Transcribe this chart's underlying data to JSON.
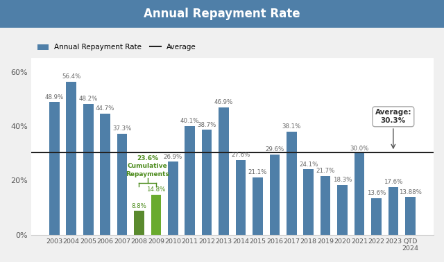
{
  "categories": [
    "2003",
    "2004",
    "2005",
    "2006",
    "2007",
    "2008",
    "2009",
    "2010",
    "2011",
    "2012",
    "2013",
    "2014",
    "2015",
    "2016",
    "2017",
    "2018",
    "2019",
    "2020",
    "2021",
    "2022",
    "2023",
    "QTD\n2024"
  ],
  "values": [
    48.9,
    56.4,
    48.2,
    44.7,
    37.3,
    8.8,
    14.8,
    26.9,
    40.1,
    38.7,
    46.9,
    27.6,
    21.1,
    29.6,
    38.1,
    24.1,
    21.7,
    18.3,
    30.0,
    13.6,
    17.6,
    13.88
  ],
  "bar_colors": [
    "#4f7fa8",
    "#4f7fa8",
    "#4f7fa8",
    "#4f7fa8",
    "#4f7fa8",
    "#5a8a2e",
    "#6aab2e",
    "#4f7fa8",
    "#4f7fa8",
    "#4f7fa8",
    "#4f7fa8",
    "#4f7fa8",
    "#4f7fa8",
    "#4f7fa8",
    "#4f7fa8",
    "#4f7fa8",
    "#4f7fa8",
    "#4f7fa8",
    "#4f7fa8",
    "#4f7fa8",
    "#4f7fa8",
    "#4f7fa8"
  ],
  "average": 30.3,
  "title": "Annual Repayment Rate",
  "title_bg_color": "#4f7fa8",
  "title_text_color": "#ffffff",
  "bar_label_color": "#666666",
  "green_label_color": "#4a8a1a",
  "ylim": [
    0,
    65
  ],
  "yticks": [
    0,
    20,
    40,
    60
  ],
  "ytick_labels": [
    "0%",
    "20%",
    "40%",
    "60%"
  ],
  "average_label": "Average:\n30.3%",
  "cumulative_label": "23.6%\nCumulative\nRepayments",
  "bg_color": "#f0f0f0",
  "plot_bg_color": "#ffffff"
}
